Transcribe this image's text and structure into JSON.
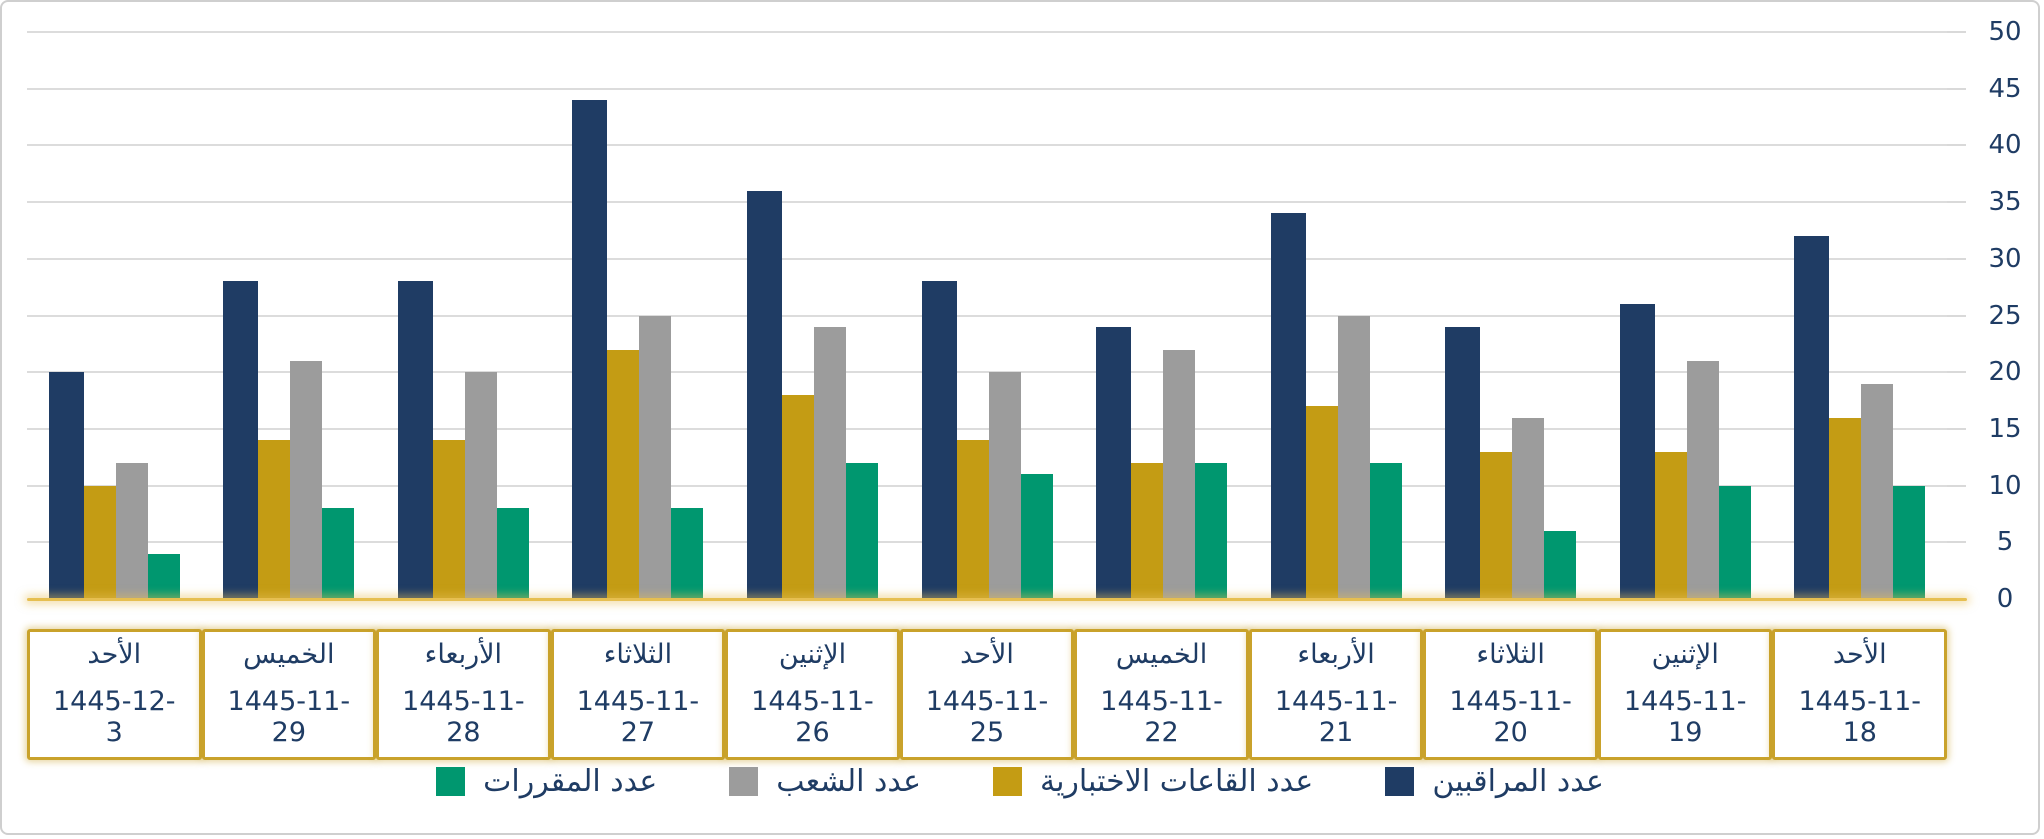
{
  "chart_data": {
    "type": "bar",
    "title": "",
    "direction": "rtl",
    "categories": [
      {
        "day": "الأحد",
        "date": "1445-12-3"
      },
      {
        "day": "الخميس",
        "date": "1445-11-29"
      },
      {
        "day": "الأربعاء",
        "date": "1445-11-28"
      },
      {
        "day": "الثلاثاء",
        "date": "1445-11-27"
      },
      {
        "day": "الإثنين",
        "date": "1445-11-26"
      },
      {
        "day": "الأحد",
        "date": "1445-11-25"
      },
      {
        "day": "الخميس",
        "date": "1445-11-22"
      },
      {
        "day": "الأربعاء",
        "date": "1445-11-21"
      },
      {
        "day": "الثلاثاء",
        "date": "1445-11-20"
      },
      {
        "day": "الإثنين",
        "date": "1445-11-19"
      },
      {
        "day": "الأحد",
        "date": "1445-11-18"
      }
    ],
    "series": [
      {
        "key": "supervisors",
        "name": "عدد المراقبين",
        "color": "#1f3c64",
        "values": [
          20,
          28,
          28,
          44,
          36,
          28,
          24,
          34,
          24,
          26,
          32
        ]
      },
      {
        "key": "exam-halls",
        "name": "عدد القاعات الاختبارية",
        "color": "#c49c14",
        "values": [
          10,
          14,
          14,
          22,
          18,
          14,
          12,
          17,
          13,
          13,
          16
        ]
      },
      {
        "key": "sections",
        "name": "عدد الشعب",
        "color": "#9c9c9c",
        "values": [
          12,
          21,
          20,
          25,
          24,
          20,
          22,
          25,
          16,
          21,
          19
        ]
      },
      {
        "key": "courses",
        "name": "عدد المقررات",
        "color": "#00976f",
        "values": [
          4,
          8,
          8,
          8,
          12,
          11,
          12,
          12,
          6,
          10,
          10
        ]
      }
    ],
    "ylim": [
      0,
      50
    ],
    "ytick_step": 5,
    "yticks": [
      0,
      5,
      10,
      15,
      20,
      25,
      30,
      35,
      40,
      45,
      50
    ],
    "yaxis_side": "right",
    "grid": true,
    "legend_position": "bottom",
    "legend_order_ltr": [
      "courses",
      "sections",
      "exam-halls",
      "supervisors"
    ]
  },
  "colors": {
    "axis_text": "#1f3c64",
    "gridline": "#dcdcdc",
    "baseline_gold": "#e6bf51",
    "label_box_border": "#c9a22b",
    "page_border": "#cfcfcf",
    "background": "#ffffff"
  }
}
